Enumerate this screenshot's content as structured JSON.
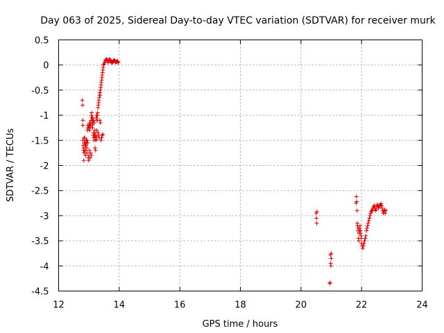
{
  "chart_data": {
    "type": "scatter",
    "title": "Day 063 of 2025, Sidereal Day-to-day VTEC variation (SDTVAR) for receiver murk",
    "xlabel": "GPS time / hours",
    "ylabel": "SDTVAR / TECUs",
    "xlim": [
      12,
      24
    ],
    "ylim": [
      -4.5,
      0.5
    ],
    "xticks": [
      12,
      14,
      16,
      18,
      20,
      22,
      24
    ],
    "yticks": [
      -4.5,
      -4,
      -3.5,
      -3,
      -2.5,
      -2,
      -1.5,
      -1,
      -0.5,
      0,
      0.5
    ],
    "xtick_labels": [
      "12",
      "14",
      "16",
      "18",
      "20",
      "22",
      "24"
    ],
    "ytick_labels": [
      "-4.5",
      "-4",
      "-3.5",
      "-3",
      "-2.5",
      "-2",
      "-1.5",
      "-1",
      "-0.5",
      "0",
      "0.5"
    ],
    "grid": true,
    "marker": "+",
    "color": "#e00000",
    "series": [
      {
        "name": "SDTVAR",
        "x": [
          12.78,
          12.79,
          12.8,
          12.8,
          12.81,
          12.82,
          12.83,
          12.84,
          12.85,
          12.86,
          12.87,
          12.88,
          12.89,
          12.9,
          12.91,
          12.92,
          12.93,
          12.94,
          12.95,
          12.96,
          12.97,
          12.98,
          12.99,
          13.0,
          13.01,
          13.02,
          13.03,
          13.04,
          13.05,
          13.06,
          13.07,
          13.08,
          13.09,
          13.1,
          13.11,
          13.12,
          13.13,
          13.14,
          13.15,
          13.16,
          13.17,
          13.18,
          13.19,
          13.2,
          13.21,
          13.22,
          13.23,
          13.24,
          13.25,
          13.26,
          13.27,
          13.28,
          13.29,
          13.3,
          13.31,
          13.32,
          13.33,
          13.34,
          13.35,
          13.36,
          13.37,
          13.38,
          13.39,
          13.4,
          13.41,
          13.42,
          13.43,
          13.44,
          13.45,
          13.46,
          13.47,
          13.48,
          13.5,
          13.52,
          13.54,
          13.56,
          13.58,
          13.6,
          13.62,
          13.64,
          13.66,
          13.68,
          13.7,
          13.72,
          13.74,
          13.76,
          13.78,
          13.8,
          13.82,
          13.84,
          13.86,
          13.88,
          13.9,
          13.92,
          13.94,
          13.96,
          13.97,
          12.8,
          12.82,
          12.84,
          12.86,
          12.88,
          12.9,
          12.92,
          12.94,
          12.96,
          12.98,
          13.0,
          13.02,
          13.04,
          13.06,
          13.08,
          13.1,
          13.12,
          13.14,
          13.16,
          13.18,
          13.2,
          13.22,
          13.24,
          13.26,
          13.28,
          13.3,
          13.32,
          13.34,
          13.36,
          13.38,
          13.4,
          13.42,
          13.44,
          13.46,
          20.5,
          20.51,
          20.52,
          20.53,
          20.95,
          20.96,
          20.97,
          20.98,
          20.99,
          21.0,
          21.0,
          21.82,
          21.83,
          21.84,
          21.85,
          21.86,
          21.87,
          21.88,
          21.89,
          21.9,
          21.91,
          21.92,
          21.93,
          21.94,
          21.95,
          21.96,
          21.97,
          21.98,
          21.99,
          22.0,
          22.02,
          22.04,
          22.06,
          22.08,
          22.1,
          22.12,
          22.14,
          22.16,
          22.18,
          22.2,
          22.22,
          22.24,
          22.26,
          22.28,
          22.3,
          22.32,
          22.34,
          22.36,
          22.38,
          22.4,
          22.42,
          22.44,
          22.46,
          22.48,
          22.5,
          22.52,
          22.54,
          22.56,
          22.58,
          22.6,
          22.62,
          22.64,
          22.66,
          22.68,
          22.7,
          22.72,
          22.74,
          22.76,
          22.78,
          22.8
        ],
        "y": [
          -0.7,
          -0.8,
          -1.1,
          -1.2,
          -1.6,
          -1.7,
          -1.9,
          -1.75,
          -1.55,
          -1.45,
          -1.6,
          -1.7,
          -1.8,
          -1.6,
          -1.5,
          -1.55,
          -1.65,
          -1.5,
          -1.3,
          -1.2,
          -1.25,
          -1.85,
          -1.9,
          -1.8,
          -1.7,
          -1.2,
          -1.15,
          -1.25,
          -1.2,
          -1.15,
          -1.1,
          -1.0,
          -0.95,
          -1.05,
          -1.15,
          -1.05,
          -1.1,
          -1.4,
          -1.35,
          -1.45,
          -1.5,
          -1.4,
          -1.35,
          -1.3,
          -1.4,
          -1.45,
          -1.5,
          -1.48,
          -1.42,
          -1.3,
          -1.1,
          -1.0,
          -0.95,
          -0.85,
          -0.8,
          -0.75,
          -0.7,
          -0.65,
          -0.6,
          -0.55,
          -0.6,
          -0.5,
          -0.45,
          -0.4,
          -0.35,
          -0.3,
          -0.25,
          -0.2,
          -0.15,
          -0.1,
          -0.05,
          0.0,
          0.02,
          0.05,
          0.08,
          0.1,
          0.12,
          0.1,
          0.08,
          0.05,
          0.1,
          0.12,
          0.1,
          0.08,
          0.06,
          0.04,
          0.05,
          0.07,
          0.09,
          0.1,
          0.08,
          0.06,
          0.05,
          0.07,
          0.08,
          0.06,
          0.05,
          -1.5,
          -1.65,
          -1.45,
          -1.7,
          -1.55,
          -1.6,
          -1.5,
          -1.75,
          -1.55,
          -1.25,
          -1.2,
          -1.3,
          -1.85,
          -1.75,
          -1.8,
          -1.2,
          -1.25,
          -1.15,
          -1.1,
          -1.15,
          -1.65,
          -1.7,
          -1.05,
          -1.0,
          -1.1,
          -1.35,
          -1.4,
          -1.45,
          -1.1,
          -1.15,
          -1.5,
          -1.45,
          -1.4,
          -1.38,
          -2.95,
          -3.05,
          -3.15,
          -2.92,
          -4.35,
          -4.33,
          -3.78,
          -3.95,
          -4.0,
          -3.85,
          -3.75,
          -2.75,
          -2.62,
          -2.72,
          -2.9,
          -3.15,
          -3.2,
          -3.3,
          -3.25,
          -3.45,
          -3.5,
          -3.35,
          -3.3,
          -3.25,
          -3.2,
          -3.3,
          -3.35,
          -3.4,
          -3.45,
          -3.55,
          -3.6,
          -3.65,
          -3.6,
          -3.55,
          -3.5,
          -3.45,
          -3.4,
          -3.3,
          -3.25,
          -3.2,
          -3.15,
          -3.1,
          -3.05,
          -3.0,
          -2.95,
          -2.92,
          -2.9,
          -2.88,
          -2.85,
          -2.82,
          -2.8,
          -2.85,
          -2.9,
          -2.88,
          -2.82,
          -2.78,
          -2.8,
          -2.85,
          -2.82,
          -2.8,
          -2.78,
          -2.76,
          -2.8,
          -2.85,
          -2.9,
          -2.95,
          -2.92,
          -2.88,
          -2.95,
          -2.9
        ]
      }
    ]
  }
}
